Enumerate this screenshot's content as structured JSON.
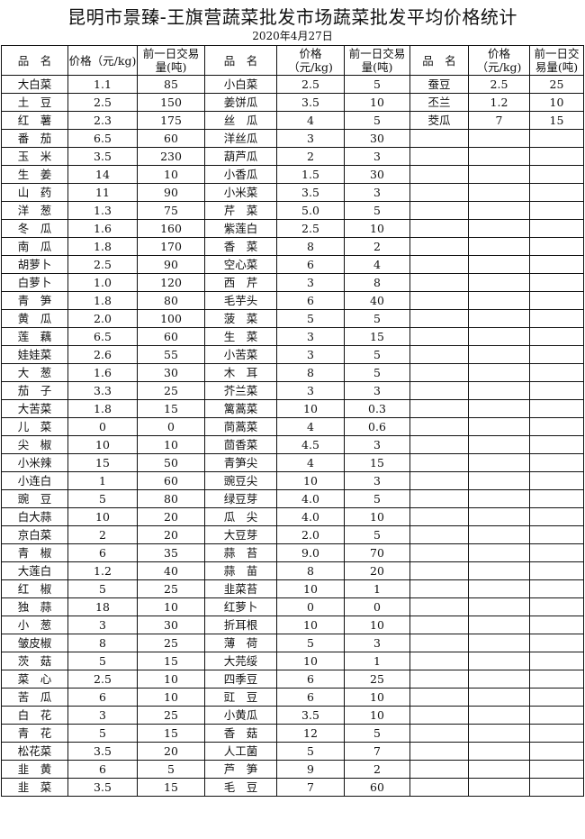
{
  "title": "昆明市景臻-王旗营蔬菜批发市场蔬菜批发平均价格统计",
  "date": "2020年4月27日",
  "headers": {
    "name": "品　名",
    "price": "价格（元/kg)",
    "volume": "前一日交易量(吨)"
  },
  "columns": [
    {
      "rows": [
        [
          "大白菜",
          "1.1",
          "85"
        ],
        [
          "土　豆",
          "2.5",
          "150"
        ],
        [
          "红　薯",
          "2.3",
          "175"
        ],
        [
          "番　茄",
          "6.5",
          "60"
        ],
        [
          "玉　米",
          "3.5",
          "230"
        ],
        [
          "生　姜",
          "14",
          "10"
        ],
        [
          "山　药",
          "11",
          "90"
        ],
        [
          "洋　葱",
          "1.3",
          "75"
        ],
        [
          "冬　瓜",
          "1.6",
          "160"
        ],
        [
          "南　瓜",
          "1.8",
          "170"
        ],
        [
          "胡萝卜",
          "2.5",
          "90"
        ],
        [
          "白萝卜",
          "1.0",
          "120"
        ],
        [
          "青　笋",
          "1.8",
          "80"
        ],
        [
          "黄　瓜",
          "2.0",
          "100"
        ],
        [
          "莲　藕",
          "6.5",
          "60"
        ],
        [
          "娃娃菜",
          "2.6",
          "55"
        ],
        [
          "大　葱",
          "1.6",
          "30"
        ],
        [
          "茄　子",
          "3.3",
          "25"
        ],
        [
          "大苦菜",
          "1.8",
          "15"
        ],
        [
          "儿　菜",
          "0",
          "0"
        ],
        [
          "尖　椒",
          "10",
          "10"
        ],
        [
          "小米辣",
          "15",
          "50"
        ],
        [
          "小连白",
          "1",
          "60"
        ],
        [
          "豌　豆",
          "5",
          "80"
        ],
        [
          "白大蒜",
          "10",
          "20"
        ],
        [
          "京白菜",
          "2",
          "20"
        ],
        [
          "青　椒",
          "6",
          "35"
        ],
        [
          "大莲白",
          "1.2",
          "40"
        ],
        [
          "红　椒",
          "5",
          "25"
        ],
        [
          "独　蒜",
          "18",
          "10"
        ],
        [
          "小　葱",
          "3",
          "30"
        ],
        [
          "皱皮椒",
          "8",
          "25"
        ],
        [
          "茨　菇",
          "5",
          "15"
        ],
        [
          "菜　心",
          "2.5",
          "10"
        ],
        [
          "苦　瓜",
          "6",
          "10"
        ],
        [
          "白　花",
          "3",
          "25"
        ],
        [
          "青　花",
          "5",
          "15"
        ],
        [
          "松花菜",
          "3.5",
          "20"
        ],
        [
          "韭　黄",
          "6",
          "5"
        ],
        [
          "韭　菜",
          "3.5",
          "15"
        ]
      ]
    },
    {
      "rows": [
        [
          "小白菜",
          "2.5",
          "5"
        ],
        [
          "姜饼瓜",
          "3.5",
          "10"
        ],
        [
          "丝　瓜",
          "4",
          "5"
        ],
        [
          "洋丝瓜",
          "3",
          "30"
        ],
        [
          "葫芦瓜",
          "2",
          "3"
        ],
        [
          "小香瓜",
          "1.5",
          "30"
        ],
        [
          "小米菜",
          "3.5",
          "3"
        ],
        [
          "芹　菜",
          "5.0",
          "5"
        ],
        [
          "紫莲白",
          "2.5",
          "10"
        ],
        [
          "香　菜",
          "8",
          "2"
        ],
        [
          "空心菜",
          "6",
          "4"
        ],
        [
          "西　芹",
          "3",
          "8"
        ],
        [
          "毛芋头",
          "6",
          "40"
        ],
        [
          "菠　菜",
          "5",
          "5"
        ],
        [
          "生　菜",
          "3",
          "15"
        ],
        [
          "小苦菜",
          "3",
          "5"
        ],
        [
          "木　耳",
          "8",
          "5"
        ],
        [
          "芥兰菜",
          "3",
          "3"
        ],
        [
          "篱蒿菜",
          "10",
          "0.3"
        ],
        [
          "茼蒿菜",
          "4",
          "0.6"
        ],
        [
          "茴香菜",
          "4.5",
          "3"
        ],
        [
          "青笋尖",
          "4",
          "15"
        ],
        [
          "豌豆尖",
          "10",
          "3"
        ],
        [
          "绿豆芽",
          "4.0",
          "5"
        ],
        [
          "瓜　尖",
          "4.0",
          "10"
        ],
        [
          "大豆芽",
          "2.0",
          "5"
        ],
        [
          "蒜　苔",
          "9.0",
          "70"
        ],
        [
          "蒜　苗",
          "8",
          "20"
        ],
        [
          "韭菜苔",
          "10",
          "1"
        ],
        [
          "红萝卜",
          "0",
          "0"
        ],
        [
          "折耳根",
          "10",
          "10"
        ],
        [
          "薄　荷",
          "5",
          "3"
        ],
        [
          "大芫绥",
          "10",
          "1"
        ],
        [
          "四季豆",
          "6",
          "25"
        ],
        [
          "豇　豆",
          "6",
          "10"
        ],
        [
          "小黄瓜",
          "3.5",
          "10"
        ],
        [
          "香　菇",
          "12",
          "5"
        ],
        [
          "人工菌",
          "5",
          "7"
        ],
        [
          "芦　笋",
          "9",
          "2"
        ],
        [
          "毛　豆",
          "7",
          "60"
        ]
      ]
    },
    {
      "rows": [
        [
          "蚕豆",
          "2.5",
          "25"
        ],
        [
          "丕兰",
          "1.2",
          "10"
        ],
        [
          "茭瓜",
          "7",
          "15"
        ]
      ]
    }
  ]
}
